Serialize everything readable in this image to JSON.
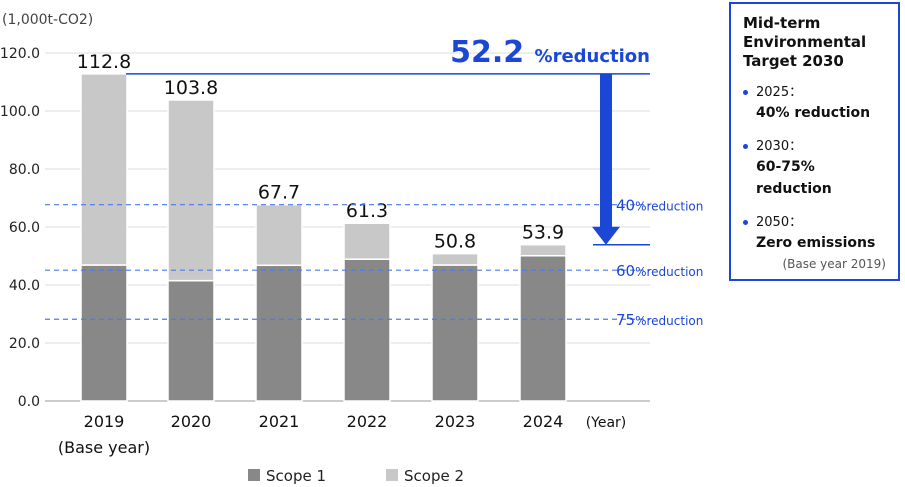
{
  "chart_data": {
    "type": "bar",
    "stacked": true,
    "unit_label": "(1,000t-CO2)",
    "categories": [
      "2019",
      "2020",
      "2021",
      "2022",
      "2023",
      "2024"
    ],
    "category_sublabels": [
      "(Base year)",
      "",
      "",
      "",
      "",
      ""
    ],
    "xlabel": "(Year)",
    "ylim": [
      0,
      120
    ],
    "yticks": [
      "0.0",
      "20.0",
      "40.0",
      "60.0",
      "80.0",
      "100.0",
      "120.0"
    ],
    "grid": true,
    "series": [
      {
        "name": "Scope 1",
        "color": "#888888",
        "values": [
          46.9,
          41.5,
          46.8,
          48.9,
          46.9,
          50.1
        ]
      },
      {
        "name": "Scope 2",
        "color": "#c8c8c8",
        "values": [
          65.9,
          62.3,
          20.9,
          12.4,
          3.9,
          3.8
        ]
      }
    ],
    "totals": [
      "112.8",
      "103.8",
      "67.7",
      "61.3",
      "50.8",
      "53.9"
    ],
    "total_values": [
      112.8,
      103.8,
      67.7,
      61.3,
      50.8,
      53.9
    ],
    "reference_lines": [
      {
        "value": 67.7,
        "num": "40",
        "label": "%reduction"
      },
      {
        "value": 45.1,
        "num": "60",
        "label": "%reduction"
      },
      {
        "value": 28.2,
        "num": "75",
        "label": "%reduction"
      }
    ],
    "annotation": {
      "num": "52.2",
      "label": "%reduction",
      "from": 112.8,
      "to": 53.9
    },
    "legend_position": "bottom",
    "accent": "#1a47d6"
  },
  "target_box": {
    "title": "Mid-term Environmental Target 2030",
    "items": [
      {
        "year": "2025：",
        "value": "40% reduction"
      },
      {
        "year": "2030：",
        "value": "60-75% reduction"
      },
      {
        "year": "2050：",
        "value": "Zero emissions"
      }
    ],
    "base": "(Base year 2019)"
  }
}
